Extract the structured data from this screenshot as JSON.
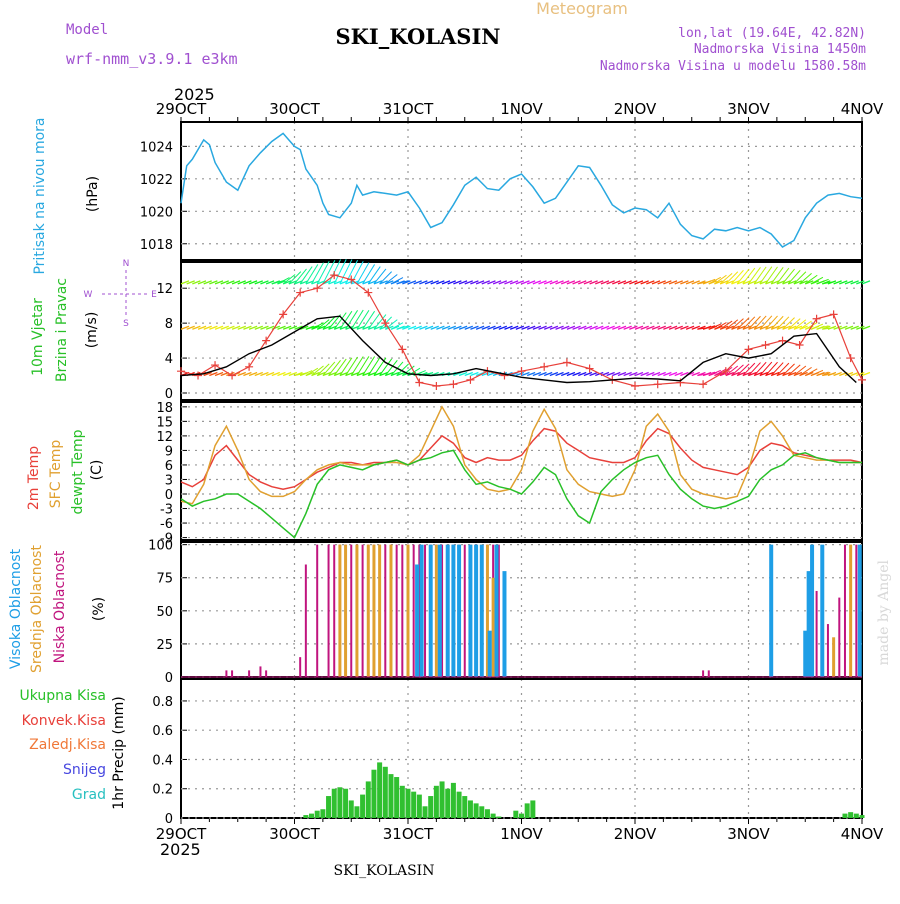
{
  "header": {
    "model_label": "Model",
    "model_name": "wrf-nmm_v3.9.1 e3km",
    "title": "SKI_KOLASIN",
    "subtitle": "Meteogram",
    "coords": "lon,lat (19.64E, 42.82N)",
    "elevation": "Nadmorska Visina 1450m",
    "model_elevation": "Nadmorska Visina u modelu 1580.58m",
    "year_top": "2025",
    "year_bottom": "2025",
    "footer_station": "SKI_KOLASIN",
    "credit": "made by Angel"
  },
  "colors": {
    "pressure": "#29a8e0",
    "temp2m": "#e8403a",
    "sfc": "#e0a030",
    "dewpt": "#28c028",
    "high_cloud": "#1e9ee6",
    "mid_cloud": "#e0a030",
    "low_cloud": "#c0147e",
    "precip": "#30c030",
    "label_purple": "#9b3fd0",
    "wind_red": "#e8403a",
    "wind_black": "#000000"
  },
  "x_axis": {
    "labels": [
      "29OCT",
      "30OCT",
      "31OCT",
      "1NOV",
      "2NOV",
      "3NOV",
      "4NOV"
    ]
  },
  "panel_labels": {
    "pressure": {
      "name": "Pritisak na nivou mora",
      "unit": "(hPa)"
    },
    "wind": {
      "line1": "10m Vjetar",
      "line2": "Brzina i Pravac",
      "unit": "(m/s)",
      "compass_n": "N",
      "compass_w": "W",
      "compass_e": "E",
      "compass_s": "S"
    },
    "temp": {
      "t2m": "2m Temp",
      "sfc": "SFC Temp",
      "dew": "dewpt Temp",
      "unit": "(C)"
    },
    "cloud": {
      "high": "Visoka Oblacnost",
      "mid": "Srednja Oblacnost",
      "low": "Niska Oblacnost",
      "unit": "(%)"
    },
    "precip": {
      "total": "Ukupna Kisa",
      "conv": "Konvek.Kisa",
      "frozen": "Zaledj.Kisa",
      "snow": "Snijeg",
      "grad": "Grad",
      "axis": "1hr Precip (mm)"
    }
  },
  "chart_data": [
    {
      "type": "line",
      "title": "Pritisak na nivou mora",
      "ylabel": "(hPa)",
      "ylim": [
        1017,
        1025.5
      ],
      "yticks": [
        "1018",
        "1020",
        "1022",
        "1024"
      ],
      "x_days": [
        0,
        0.05,
        0.1,
        0.2,
        0.25,
        0.3,
        0.4,
        0.5,
        0.6,
        0.7,
        0.8,
        0.9,
        1.0,
        1.05,
        1.1,
        1.2,
        1.25,
        1.3,
        1.4,
        1.5,
        1.55,
        1.6,
        1.7,
        1.8,
        1.9,
        2.0,
        2.1,
        2.2,
        2.3,
        2.4,
        2.5,
        2.6,
        2.7,
        2.8,
        2.9,
        3.0,
        3.1,
        3.2,
        3.3,
        3.4,
        3.5,
        3.6,
        3.7,
        3.8,
        3.9,
        4.0,
        4.1,
        4.2,
        4.3,
        4.4,
        4.5,
        4.6,
        4.7,
        4.8,
        4.9,
        5.0,
        5.1,
        5.2,
        5.3,
        5.4,
        5.5,
        5.6,
        5.7,
        5.8,
        5.9,
        6.0
      ],
      "values": [
        1020.5,
        1022.8,
        1023.2,
        1024.4,
        1024.1,
        1023.0,
        1021.8,
        1021.3,
        1022.8,
        1023.6,
        1024.3,
        1024.8,
        1024.0,
        1023.8,
        1022.6,
        1021.6,
        1020.5,
        1019.8,
        1019.6,
        1020.5,
        1021.6,
        1021.0,
        1021.2,
        1021.1,
        1021.0,
        1021.2,
        1020.2,
        1019.0,
        1019.3,
        1020.4,
        1021.6,
        1022.1,
        1021.4,
        1021.3,
        1022.0,
        1022.3,
        1021.5,
        1020.5,
        1020.8,
        1021.8,
        1022.8,
        1022.7,
        1021.6,
        1020.4,
        1019.9,
        1020.2,
        1020.1,
        1019.6,
        1020.5,
        1019.2,
        1018.5,
        1018.3,
        1018.9,
        1018.8,
        1019.0,
        1018.8,
        1019.0,
        1018.6,
        1017.8,
        1018.2,
        1019.6,
        1020.5,
        1021.0,
        1021.1,
        1020.9,
        1020.8
      ]
    },
    {
      "type": "line",
      "title": "10m Vjetar Brzina i Pravac",
      "ylabel": "(m/s)",
      "ylim": [
        -0.8,
        15
      ],
      "yticks": [
        "0",
        "4",
        "8",
        "12"
      ],
      "series": [
        {
          "name": "wind speed",
          "x_days": [
            0,
            0.15,
            0.3,
            0.45,
            0.6,
            0.75,
            0.9,
            1.05,
            1.2,
            1.35,
            1.5,
            1.65,
            1.8,
            1.95,
            2.1,
            2.25,
            2.4,
            2.55,
            2.7,
            2.85,
            3.0,
            3.2,
            3.4,
            3.6,
            3.8,
            4.0,
            4.2,
            4.4,
            4.6,
            4.8,
            5.0,
            5.15,
            5.3,
            5.45,
            5.6,
            5.75,
            5.9,
            6.0
          ],
          "values": [
            2.5,
            2.0,
            3.2,
            2.0,
            3.0,
            6.0,
            9.0,
            11.5,
            12.0,
            13.5,
            13.0,
            11.5,
            8.0,
            5.0,
            1.2,
            0.8,
            1.0,
            1.5,
            2.5,
            2.0,
            2.5,
            3.0,
            3.5,
            2.8,
            1.5,
            0.8,
            1.0,
            1.2,
            1.0,
            2.5,
            5.0,
            5.5,
            6.0,
            5.5,
            8.5,
            9.0,
            4.0,
            1.5
          ]
        },
        {
          "name": "wind gust",
          "x_days": [
            0,
            0.2,
            0.4,
            0.6,
            0.8,
            1.0,
            1.2,
            1.4,
            1.6,
            1.8,
            2.0,
            2.2,
            2.4,
            2.6,
            2.8,
            3.0,
            3.2,
            3.4,
            3.6,
            3.8,
            4.0,
            4.2,
            4.4,
            4.6,
            4.8,
            5.0,
            5.2,
            5.4,
            5.6,
            5.8,
            5.95
          ],
          "values": [
            2.0,
            2.2,
            3.0,
            4.5,
            5.5,
            7.0,
            8.5,
            8.8,
            6.0,
            3.5,
            2.2,
            2.0,
            2.2,
            2.8,
            2.3,
            1.8,
            1.5,
            1.2,
            1.3,
            1.5,
            1.7,
            1.6,
            1.4,
            3.5,
            4.5,
            4.0,
            4.5,
            6.5,
            6.8,
            3.0,
            1.2
          ]
        }
      ]
    },
    {
      "type": "line",
      "title": "2m Temp / SFC Temp / dewpt Temp",
      "ylabel": "(C)",
      "ylim": [
        -9.5,
        19
      ],
      "yticks": [
        "-9",
        "-6",
        "-3",
        "0",
        "3",
        "6",
        "9",
        "12",
        "15",
        "18"
      ],
      "x_days": [
        0,
        0.1,
        0.2,
        0.3,
        0.4,
        0.5,
        0.6,
        0.7,
        0.8,
        0.9,
        1.0,
        1.1,
        1.2,
        1.3,
        1.4,
        1.5,
        1.6,
        1.7,
        1.8,
        1.9,
        2.0,
        2.1,
        2.2,
        2.3,
        2.4,
        2.5,
        2.6,
        2.7,
        2.8,
        2.9,
        3.0,
        3.1,
        3.2,
        3.3,
        3.4,
        3.5,
        3.6,
        3.7,
        3.8,
        3.9,
        4.0,
        4.1,
        4.2,
        4.3,
        4.4,
        4.5,
        4.6,
        4.7,
        4.8,
        4.9,
        5.0,
        5.1,
        5.2,
        5.3,
        5.4,
        5.5,
        5.6,
        5.7,
        5.8,
        5.9,
        6.0
      ],
      "series": [
        {
          "name": "2m Temp",
          "values": [
            2.5,
            1.5,
            3.0,
            8.0,
            10.0,
            7.0,
            4.0,
            2.5,
            1.5,
            1.0,
            1.5,
            3.0,
            4.5,
            5.5,
            6.5,
            6.5,
            6.0,
            6.5,
            6.5,
            7.0,
            6.0,
            7.0,
            9.5,
            12.0,
            10.5,
            7.5,
            6.5,
            7.5,
            7.0,
            7.0,
            8.0,
            11.0,
            13.5,
            13.0,
            10.5,
            9.0,
            7.5,
            7.0,
            6.5,
            6.5,
            7.5,
            11.0,
            13.5,
            12.5,
            9.5,
            7.0,
            5.5,
            5.0,
            4.5,
            4.0,
            5.5,
            9.0,
            10.5,
            10.0,
            8.5,
            8.0,
            7.5,
            7.0,
            7.0,
            7.0,
            6.5
          ]
        },
        {
          "name": "SFC Temp",
          "values": [
            -1.5,
            -2.0,
            2.0,
            10.0,
            14.0,
            9.0,
            3.0,
            0.5,
            -0.5,
            -0.5,
            0.5,
            3.0,
            5.0,
            6.0,
            6.5,
            6.0,
            6.0,
            6.0,
            6.5,
            6.5,
            6.0,
            8.0,
            13.0,
            18.0,
            14.0,
            6.0,
            3.0,
            1.0,
            0.5,
            1.0,
            5.0,
            13.0,
            17.5,
            13.5,
            5.0,
            2.0,
            0.5,
            0.0,
            -0.5,
            0.0,
            5.0,
            14.0,
            16.5,
            13.0,
            4.0,
            1.0,
            0.0,
            -0.5,
            -1.0,
            -0.5,
            5.0,
            13.0,
            15.0,
            12.0,
            8.0,
            7.5,
            7.0,
            7.0,
            6.5,
            6.5,
            6.5
          ]
        },
        {
          "name": "dewpt Temp",
          "values": [
            -1.0,
            -2.5,
            -1.5,
            -1.0,
            0.0,
            0.0,
            -1.5,
            -3.0,
            -5.0,
            -7.0,
            -9.0,
            -4.0,
            2.0,
            5.0,
            6.0,
            5.5,
            5.0,
            6.0,
            6.5,
            7.0,
            6.0,
            7.0,
            7.5,
            8.5,
            9.0,
            5.0,
            2.0,
            2.5,
            1.5,
            1.0,
            0.0,
            2.5,
            5.5,
            4.0,
            -1.0,
            -4.5,
            -6.0,
            0.5,
            3.0,
            5.0,
            6.5,
            7.5,
            8.0,
            4.0,
            1.0,
            -1.0,
            -2.5,
            -3.0,
            -2.5,
            -1.5,
            -0.5,
            3.0,
            5.0,
            6.0,
            8.0,
            8.5,
            7.5,
            7.0,
            6.5,
            6.5,
            6.5
          ]
        }
      ]
    },
    {
      "type": "bar",
      "title": "Oblacnost",
      "ylabel": "(%)",
      "ylim": [
        0,
        102
      ],
      "yticks": [
        "0",
        "25",
        "50",
        "75",
        "100"
      ],
      "series": [
        {
          "name": "Niska Oblacnost",
          "x_days": [
            0.4,
            0.45,
            0.6,
            0.7,
            0.75,
            1.05,
            1.1,
            1.2,
            1.3,
            1.35,
            1.4,
            1.45,
            1.5,
            1.55,
            1.6,
            1.65,
            1.7,
            1.75,
            1.8,
            1.85,
            1.9,
            1.95,
            2.0,
            2.05,
            2.1,
            2.15,
            2.2,
            2.25,
            2.3,
            2.35,
            2.4,
            2.45,
            2.5,
            2.55,
            2.6,
            2.65,
            2.7,
            2.75,
            2.8,
            4.6,
            4.65,
            5.55,
            5.6,
            5.65,
            5.7,
            5.8,
            5.85,
            5.95
          ],
          "values": [
            5,
            5,
            5,
            8,
            5,
            15,
            85,
            100,
            100,
            100,
            100,
            100,
            100,
            100,
            100,
            100,
            100,
            100,
            100,
            100,
            100,
            100,
            100,
            100,
            100,
            100,
            100,
            100,
            100,
            100,
            100,
            100,
            100,
            100,
            100,
            100,
            100,
            100,
            100,
            5,
            5,
            25,
            65,
            55,
            40,
            60,
            100,
            100
          ]
        },
        {
          "name": "Srednja Oblacnost",
          "x_days": [
            1.4,
            1.45,
            1.55,
            1.65,
            1.7,
            1.75,
            1.85,
            2.0,
            2.2,
            2.25,
            2.35,
            2.45,
            2.55,
            2.65,
            2.7,
            2.75,
            2.85,
            5.65,
            5.75,
            5.9
          ],
          "values": [
            100,
            100,
            100,
            100,
            100,
            100,
            100,
            100,
            5,
            100,
            100,
            100,
            100,
            100,
            100,
            75,
            75,
            60,
            30,
            100
          ]
        },
        {
          "name": "Visoka Oblacnost",
          "x_days": [
            2.08,
            2.12,
            2.2,
            2.28,
            2.35,
            2.4,
            2.45,
            2.55,
            2.6,
            2.65,
            2.72,
            2.78,
            2.85,
            5.2,
            5.5,
            5.53,
            5.56,
            5.65,
            5.98
          ],
          "values": [
            85,
            100,
            100,
            100,
            100,
            100,
            100,
            100,
            100,
            100,
            35,
            100,
            80,
            100,
            35,
            80,
            100,
            100,
            100
          ]
        }
      ]
    },
    {
      "type": "bar",
      "title": "1hr Precip",
      "ylabel": "1hr Precip (mm)",
      "ylim": [
        0,
        0.95
      ],
      "yticks": [
        "0",
        "0.2",
        "0.4",
        "0.6",
        "0.8"
      ],
      "series": [
        {
          "name": "Ukupna Kisa",
          "x_days": [
            1.1,
            1.15,
            1.2,
            1.25,
            1.3,
            1.35,
            1.4,
            1.45,
            1.5,
            1.55,
            1.6,
            1.65,
            1.7,
            1.75,
            1.8,
            1.85,
            1.9,
            1.95,
            2.0,
            2.05,
            2.1,
            2.15,
            2.2,
            2.25,
            2.3,
            2.35,
            2.4,
            2.45,
            2.5,
            2.55,
            2.6,
            2.65,
            2.7,
            2.75,
            2.8,
            2.85,
            2.9,
            2.95,
            3.0,
            3.05,
            3.1,
            3.15,
            3.2,
            3.25,
            5.85,
            5.9,
            5.95,
            6.0
          ],
          "values": [
            0.02,
            0.03,
            0.05,
            0.06,
            0.15,
            0.2,
            0.21,
            0.2,
            0.12,
            0.08,
            0.16,
            0.25,
            0.33,
            0.38,
            0.35,
            0.3,
            0.28,
            0.22,
            0.2,
            0.18,
            0.16,
            0.08,
            0.15,
            0.22,
            0.25,
            0.2,
            0.24,
            0.18,
            0.15,
            0.12,
            0.1,
            0.08,
            0.06,
            0.03,
            0.01,
            0.0,
            0.0,
            0.05,
            0.03,
            0.1,
            0.12,
            0.0,
            0.0,
            0.0,
            0.03,
            0.04,
            0.03,
            0.02
          ]
        }
      ]
    }
  ]
}
